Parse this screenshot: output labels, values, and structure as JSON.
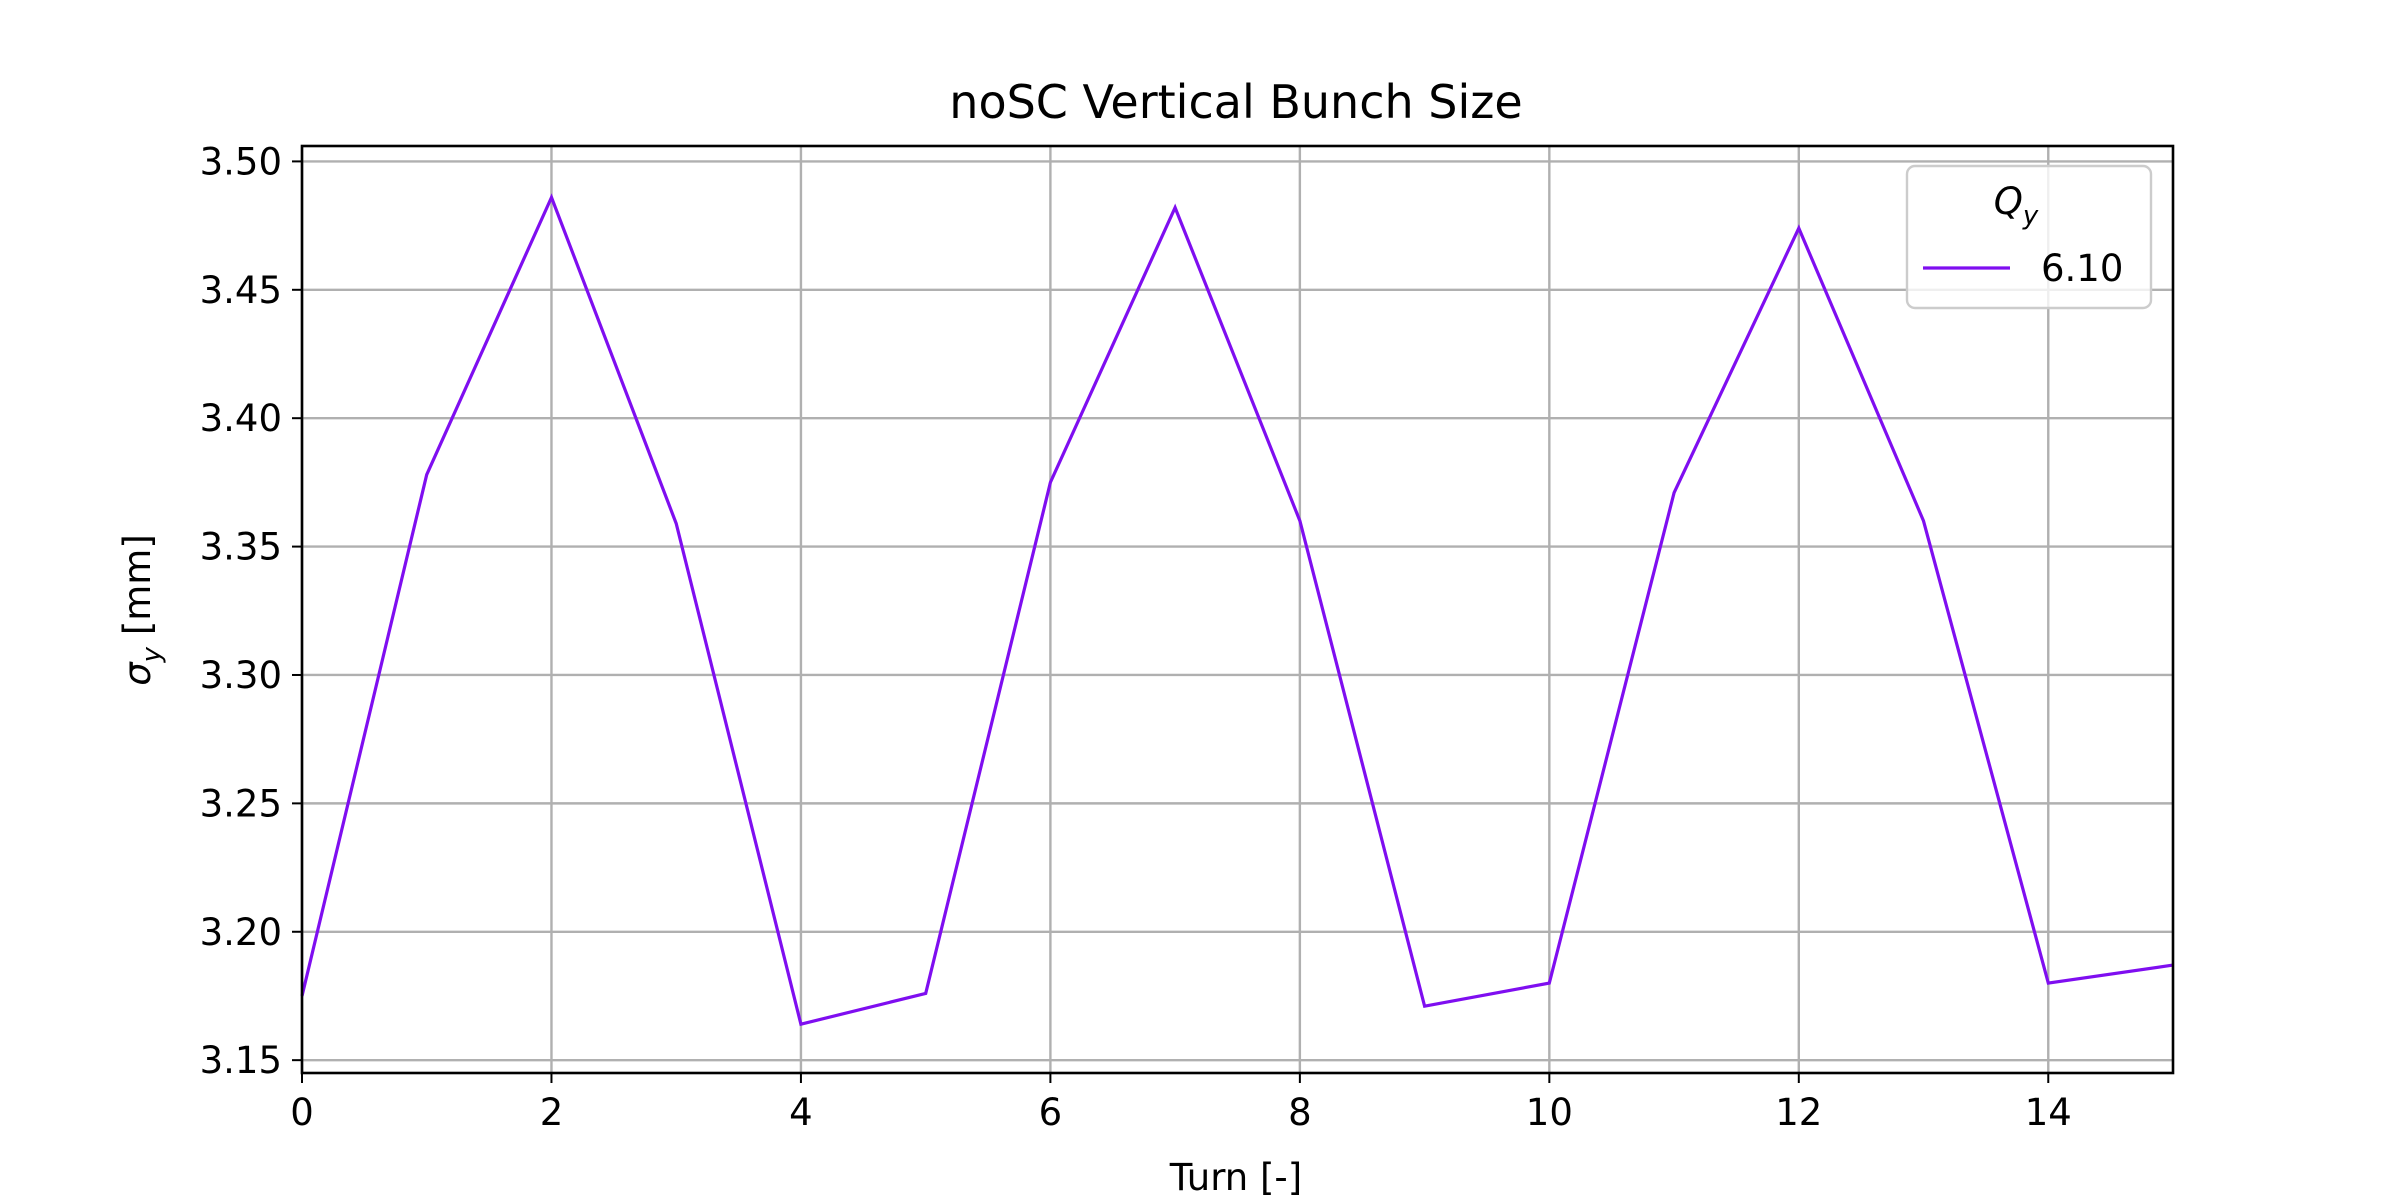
{
  "chart_data": {
    "type": "line",
    "title": "noSC Vertical Bunch Size",
    "xlabel": "Turn [-]",
    "ylabel_symbol": "σ",
    "ylabel_subscript": "y",
    "ylabel_unit": " [mm]",
    "xlim": [
      0,
      15
    ],
    "ylim": [
      3.145,
      3.506
    ],
    "xticks": [
      0,
      2,
      4,
      6,
      8,
      10,
      12,
      14
    ],
    "yticks": [
      3.15,
      3.2,
      3.25,
      3.3,
      3.35,
      3.4,
      3.45,
      3.5
    ],
    "ytick_labels": [
      "3.15",
      "3.20",
      "3.25",
      "3.30",
      "3.35",
      "3.40",
      "3.45",
      "3.50"
    ],
    "grid": true,
    "legend": {
      "title_symbol": "Q",
      "title_subscript": "y",
      "placement": "top-right"
    },
    "series": [
      {
        "name": "6.10",
        "color": "#7f0ef0",
        "x": [
          0,
          1,
          2,
          3,
          4,
          5,
          6,
          7,
          8,
          9,
          10,
          11,
          12,
          13,
          14,
          15
        ],
        "y": [
          3.175,
          3.378,
          3.486,
          3.359,
          3.164,
          3.176,
          3.375,
          3.482,
          3.36,
          3.171,
          3.18,
          3.371,
          3.474,
          3.36,
          3.18,
          3.187
        ]
      }
    ]
  }
}
